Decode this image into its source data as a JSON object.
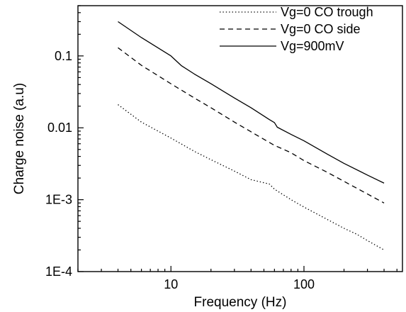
{
  "chart_data": {
    "type": "line",
    "title": "",
    "xlabel": "Frequency (Hz)",
    "ylabel": "Charge noise (a.u)",
    "xscale": "log",
    "yscale": "log",
    "xlim": [
      2,
      550
    ],
    "ylim": [
      0.0001,
      0.5
    ],
    "x_ticks": [
      {
        "value": 10,
        "label": "10"
      },
      {
        "value": 100,
        "label": "100"
      }
    ],
    "y_ticks": [
      {
        "value": 0.0001,
        "label": "1E-4"
      },
      {
        "value": 0.001,
        "label": "1E-3"
      },
      {
        "value": 0.01,
        "label": "0.01"
      },
      {
        "value": 0.1,
        "label": "0.1"
      }
    ],
    "grid": false,
    "legend_position": "top-right",
    "series": [
      {
        "name": "Vg=0 CO trough",
        "style": "dotted",
        "color": "#000000",
        "x": [
          4,
          6,
          10,
          15,
          20,
          30,
          40,
          55,
          60,
          80,
          100,
          150,
          200,
          250,
          300,
          400
        ],
        "y": [
          0.021,
          0.012,
          0.0072,
          0.0047,
          0.0036,
          0.0025,
          0.0019,
          0.00165,
          0.0014,
          0.001,
          0.00079,
          0.00053,
          0.0004,
          0.00033,
          0.00027,
          0.0002
        ]
      },
      {
        "name": "Vg=0 CO side",
        "style": "dashed",
        "color": "#000000",
        "x": [
          4,
          6,
          10,
          15,
          20,
          30,
          40,
          60,
          80,
          100,
          150,
          200,
          300,
          400
        ],
        "y": [
          0.13,
          0.074,
          0.041,
          0.026,
          0.019,
          0.012,
          0.0088,
          0.0057,
          0.0045,
          0.0035,
          0.0024,
          0.0018,
          0.0012,
          0.0009
        ]
      },
      {
        "name": "Vg=900mV",
        "style": "solid",
        "color": "#000000",
        "x": [
          4,
          6,
          10,
          12,
          15,
          20,
          30,
          40,
          55,
          60,
          63,
          80,
          100,
          150,
          200,
          300,
          400
        ],
        "y": [
          0.3,
          0.18,
          0.1,
          0.073,
          0.056,
          0.041,
          0.026,
          0.019,
          0.013,
          0.0118,
          0.0102,
          0.0081,
          0.0066,
          0.0043,
          0.0032,
          0.0022,
          0.0017
        ]
      }
    ]
  }
}
